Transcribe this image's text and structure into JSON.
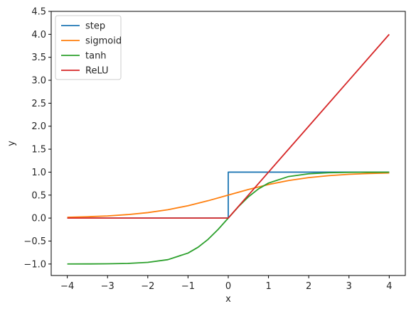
{
  "chart_data": {
    "type": "line",
    "title": "",
    "xlabel": "x",
    "ylabel": "y",
    "xlim": [
      -4.4,
      4.4
    ],
    "ylim": [
      -1.25,
      4.5
    ],
    "xticks": [
      -4,
      -3,
      -2,
      -1,
      0,
      1,
      2,
      3,
      4
    ],
    "xtick_labels": [
      "−4",
      "−3",
      "−2",
      "−1",
      "0",
      "1",
      "2",
      "3",
      "4"
    ],
    "yticks": [
      -1.0,
      -0.5,
      0.0,
      0.5,
      1.0,
      1.5,
      2.0,
      2.5,
      3.0,
      3.5,
      4.0,
      4.5
    ],
    "ytick_labels": [
      "−1.0",
      "−0.5",
      "0.0",
      "0.5",
      "1.0",
      "1.5",
      "2.0",
      "2.5",
      "3.0",
      "3.5",
      "4.0",
      "4.5"
    ],
    "grid": false,
    "legend_position": "top-left",
    "series": [
      {
        "name": "step",
        "color": "#1f77b4",
        "x": [
          -4,
          -3,
          -2,
          -1,
          0,
          0,
          1,
          2,
          3,
          4
        ],
        "y": [
          0,
          0,
          0,
          0,
          0,
          1,
          1,
          1,
          1,
          1
        ]
      },
      {
        "name": "sigmoid",
        "color": "#ff7f0e",
        "x": [
          -4,
          -3.5,
          -3,
          -2.5,
          -2,
          -1.5,
          -1,
          -0.5,
          0,
          0.5,
          1,
          1.5,
          2,
          2.5,
          3,
          3.5,
          4
        ],
        "y": [
          0.018,
          0.029,
          0.047,
          0.076,
          0.119,
          0.182,
          0.269,
          0.378,
          0.5,
          0.622,
          0.731,
          0.818,
          0.881,
          0.924,
          0.953,
          0.971,
          0.982
        ]
      },
      {
        "name": "tanh",
        "color": "#2ca02c",
        "x": [
          -4,
          -3.5,
          -3,
          -2.5,
          -2,
          -1.5,
          -1,
          -0.75,
          -0.5,
          -0.25,
          0,
          0.25,
          0.5,
          0.75,
          1,
          1.5,
          2,
          2.5,
          3,
          3.5,
          4
        ],
        "y": [
          -0.999,
          -0.998,
          -0.995,
          -0.987,
          -0.964,
          -0.905,
          -0.762,
          -0.635,
          -0.462,
          -0.245,
          0,
          0.245,
          0.462,
          0.635,
          0.762,
          0.905,
          0.964,
          0.987,
          0.995,
          0.998,
          0.999
        ]
      },
      {
        "name": "ReLU",
        "color": "#d62728",
        "x": [
          -4,
          -3,
          -2,
          -1,
          0,
          1,
          2,
          3,
          4
        ],
        "y": [
          0,
          0,
          0,
          0,
          0,
          1,
          2,
          3,
          4
        ]
      }
    ]
  }
}
